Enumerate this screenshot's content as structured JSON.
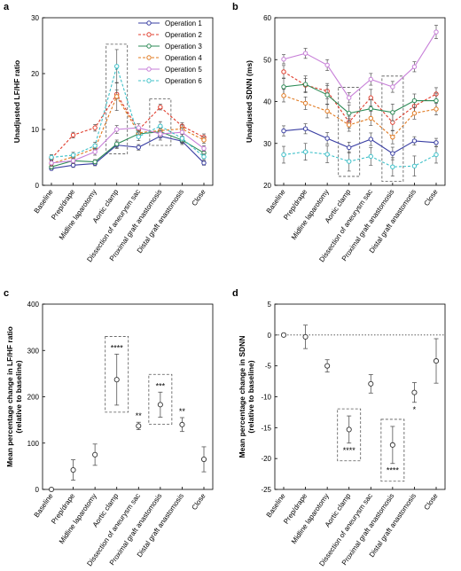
{
  "chart_data": [
    {
      "panel": "a",
      "type": "line",
      "ylabel": "Unadjusted LF/HF ratio",
      "ylim": [
        0,
        30
      ],
      "yticks": [
        0,
        10,
        20,
        30
      ],
      "categories": [
        "Baseline",
        "Prep/drape",
        "Midline laparotomy",
        "Aortic clamp",
        "Dissection of aneurysm sac",
        "Proximal graft anastomosis",
        "Distal graft anastomosis",
        "Close"
      ],
      "legend_position": "top-right",
      "highlight_boxes": [
        [
          3,
          3
        ],
        [
          5,
          5
        ]
      ],
      "series": [
        {
          "name": "Operation 1",
          "color": "#3a3fa3",
          "dash": false,
          "marker": "circle",
          "values": [
            3.0,
            3.6,
            3.9,
            7.2,
            6.8,
            8.8,
            7.9,
            4.0
          ],
          "err": [
            0.3,
            0.4,
            0.4,
            0.6,
            0.5,
            0.7,
            0.6,
            0.4
          ]
        },
        {
          "name": "Operation 2",
          "color": "#e03c2c",
          "dash": true,
          "marker": "circle",
          "values": [
            4.8,
            9.0,
            10.3,
            16.3,
            9.9,
            14.0,
            10.6,
            8.6
          ],
          "err": [
            0.5,
            0.5,
            0.6,
            0.8,
            0.6,
            0.5,
            0.6,
            0.6
          ]
        },
        {
          "name": "Operation 3",
          "color": "#2e8b57",
          "dash": false,
          "marker": "circle",
          "values": [
            3.3,
            4.4,
            4.2,
            7.4,
            9.2,
            9.6,
            8.1,
            5.8
          ],
          "err": [
            0.4,
            0.4,
            0.4,
            0.7,
            0.6,
            0.6,
            0.6,
            0.5
          ]
        },
        {
          "name": "Operation 4",
          "color": "#e0781e",
          "dash": true,
          "marker": "circle",
          "values": [
            3.9,
            5.1,
            6.6,
            15.9,
            9.4,
            9.8,
            10.1,
            8.1
          ],
          "err": [
            0.5,
            0.5,
            0.6,
            2.5,
            0.6,
            0.8,
            0.7,
            0.6
          ]
        },
        {
          "name": "Operation 5",
          "color": "#c77fd8",
          "dash": false,
          "marker": "circle",
          "values": [
            4.0,
            4.4,
            6.0,
            10.0,
            10.3,
            9.2,
            9.5,
            6.6
          ],
          "err": [
            0.4,
            0.5,
            0.6,
            0.7,
            0.7,
            0.6,
            0.7,
            0.5
          ]
        },
        {
          "name": "Operation 6",
          "color": "#3fc1c9",
          "dash": true,
          "marker": "circle",
          "values": [
            5.0,
            5.4,
            7.1,
            21.3,
            8.7,
            10.6,
            8.4,
            5.1
          ],
          "err": [
            0.5,
            0.5,
            0.6,
            3.0,
            0.7,
            0.8,
            0.7,
            0.5
          ]
        }
      ]
    },
    {
      "panel": "b",
      "type": "line",
      "ylabel": "Unadjusted SDNN (ms)",
      "ylim": [
        20,
        60
      ],
      "yticks": [
        20,
        30,
        40,
        50,
        60
      ],
      "categories": [
        "Baseline",
        "Prep/drape",
        "Midline laparotomy",
        "Aortic clamp",
        "Dissection of aneurysm sac",
        "Proximal graft anastomosis",
        "Distal graft anastomosis",
        "Close"
      ],
      "highlight_boxes": [
        [
          3,
          3
        ],
        [
          5,
          5
        ]
      ],
      "series": [
        {
          "name": "Operation 1",
          "color": "#3a3fa3",
          "dash": false,
          "marker": "circle",
          "values": [
            33.0,
            33.5,
            31.2,
            29.0,
            31.0,
            27.6,
            30.6,
            30.2
          ],
          "err": [
            1.2,
            1.2,
            1.4,
            1.3,
            1.5,
            1.5,
            1.0,
            1.0
          ]
        },
        {
          "name": "Operation 2",
          "color": "#e03c2c",
          "dash": true,
          "marker": "circle",
          "values": [
            47.1,
            43.9,
            42.5,
            35.1,
            40.9,
            35.0,
            38.9,
            41.8
          ],
          "err": [
            1.5,
            1.6,
            1.8,
            1.4,
            2.0,
            2.0,
            1.5,
            1.5
          ]
        },
        {
          "name": "Operation 3",
          "color": "#2e8b57",
          "dash": false,
          "marker": "circle",
          "values": [
            43.5,
            44.1,
            41.6,
            37.2,
            38.3,
            37.4,
            40.2,
            40.2
          ],
          "err": [
            2.0,
            2.0,
            2.2,
            2.0,
            2.2,
            2.0,
            1.6,
            1.8
          ]
        },
        {
          "name": "Operation 4",
          "color": "#e0781e",
          "dash": true,
          "marker": "circle",
          "values": [
            41.4,
            39.6,
            37.7,
            34.4,
            36.0,
            31.5,
            37.2,
            38.2
          ],
          "err": [
            1.5,
            1.5,
            1.6,
            1.5,
            1.7,
            1.6,
            1.4,
            1.4
          ]
        },
        {
          "name": "Operation 5",
          "color": "#c77fd8",
          "dash": false,
          "marker": "circle",
          "values": [
            50.1,
            51.5,
            48.7,
            40.9,
            45.3,
            43.5,
            48.3,
            56.6
          ],
          "err": [
            1.1,
            1.2,
            1.3,
            1.2,
            1.4,
            1.3,
            1.2,
            1.6
          ]
        },
        {
          "name": "Operation 6",
          "color": "#3fc1c9",
          "dash": true,
          "marker": "circle",
          "values": [
            27.3,
            28.0,
            27.4,
            25.7,
            26.9,
            24.4,
            24.6,
            27.3
          ],
          "err": [
            2.0,
            2.0,
            2.0,
            2.3,
            2.1,
            2.2,
            2.4,
            2.0
          ]
        }
      ]
    },
    {
      "panel": "c",
      "type": "scatter",
      "ylabel": "Mean percentage change in LF/HF ratio (relative to baseline)",
      "ylabel_lines": [
        "Mean percentage change in LF/HF ratio",
        "(relative to baseline)"
      ],
      "ylim": [
        0,
        400
      ],
      "yticks": [
        0,
        100,
        200,
        300,
        400
      ],
      "categories": [
        "Baseline",
        "Prep/drape",
        "Midline laparotomy",
        "Aortic clamp",
        "Dissection of aneurysm sac",
        "Proximal graft anastomosis",
        "Distal graft anastomosis",
        "Close"
      ],
      "values": [
        0,
        42,
        75,
        237,
        137,
        183,
        140,
        65
      ],
      "err": [
        0,
        22,
        23,
        55,
        8,
        27,
        15,
        27
      ],
      "significance": [
        "",
        "",
        "",
        "****",
        "**",
        "***",
        "**",
        ""
      ],
      "significance_position": [
        "above",
        "above",
        "above",
        "above",
        "above",
        "above",
        "above",
        "above"
      ],
      "highlight_boxes": [
        3,
        5
      ]
    },
    {
      "panel": "d",
      "type": "scatter",
      "ylabel": "Mean percentage change in SDNN (relative to baseline)",
      "ylabel_lines": [
        "Mean percentage change in SDNN",
        "(relative to baseline)"
      ],
      "ylim": [
        -25,
        5
      ],
      "yticks": [
        -25,
        -20,
        -15,
        -10,
        -5,
        0,
        5
      ],
      "reference_line": 0,
      "categories": [
        "Baseline",
        "Prep/drape",
        "Midline laparotomy",
        "Aortic clamp",
        "Dissection of aneurysm sac",
        "Proximal graft anastomosis",
        "Distal graft anastomosis",
        "Close"
      ],
      "values": [
        0,
        -0.3,
        -5.0,
        -15.3,
        -7.9,
        -17.8,
        -9.3,
        -4.2
      ],
      "err": [
        0,
        1.9,
        1.0,
        2.2,
        1.5,
        3.0,
        1.6,
        3.6
      ],
      "significance": [
        "",
        "",
        "",
        "****",
        "",
        "****",
        "*",
        ""
      ],
      "significance_position": [
        "below",
        "below",
        "below",
        "below",
        "below",
        "below",
        "below",
        "below"
      ],
      "highlight_boxes": [
        3,
        5
      ]
    }
  ]
}
